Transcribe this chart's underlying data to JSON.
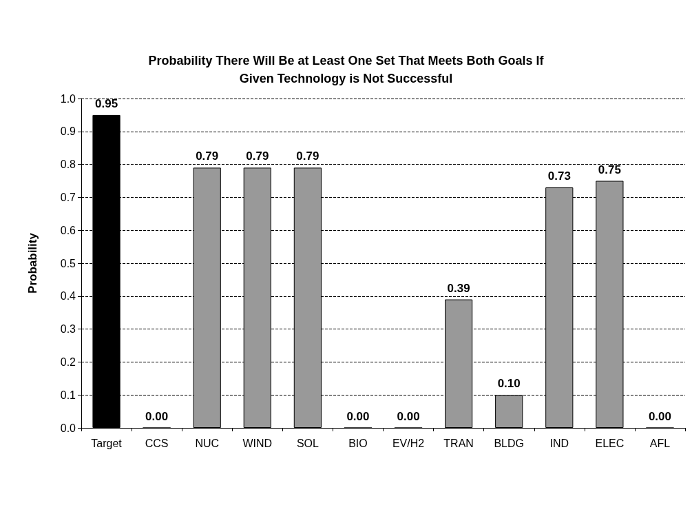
{
  "chart_data": {
    "type": "bar",
    "title": "Probability There Will Be at Least One Set That Meets Both Goals If\nGiven Technology is Not Successful",
    "ylabel": "Probability",
    "categories": [
      "Target",
      "CCS",
      "NUC",
      "WIND",
      "SOL",
      "BIO",
      "EV/H2",
      "TRAN",
      "BLDG",
      "IND",
      "ELEC",
      "AFL"
    ],
    "values": [
      0.95,
      0,
      0.79,
      0.79,
      0.79,
      0,
      0,
      0.39,
      0.1,
      0.73,
      0.75,
      0
    ],
    "colors": [
      "#000000",
      "#999999",
      "#999999",
      "#999999",
      "#999999",
      "#999999",
      "#999999",
      "#999999",
      "#999999",
      "#999999",
      "#999999",
      "#999999"
    ],
    "value_labels": [
      "0.95",
      "0.00",
      "0.79",
      "0.79",
      "0.79",
      "0.00",
      "0.00",
      "0.39",
      "0.10",
      "0.73",
      "0.75",
      "0.00"
    ],
    "ylim": [
      0,
      1
    ],
    "yticks": [
      {
        "value": 0,
        "label": "0.0"
      },
      0.1,
      0.2,
      0.3,
      0.4,
      0.5,
      0.6,
      0.7,
      0.8,
      0.9,
      {
        "value": 1,
        "label": "1.0"
      }
    ],
    "grid": "y"
  }
}
